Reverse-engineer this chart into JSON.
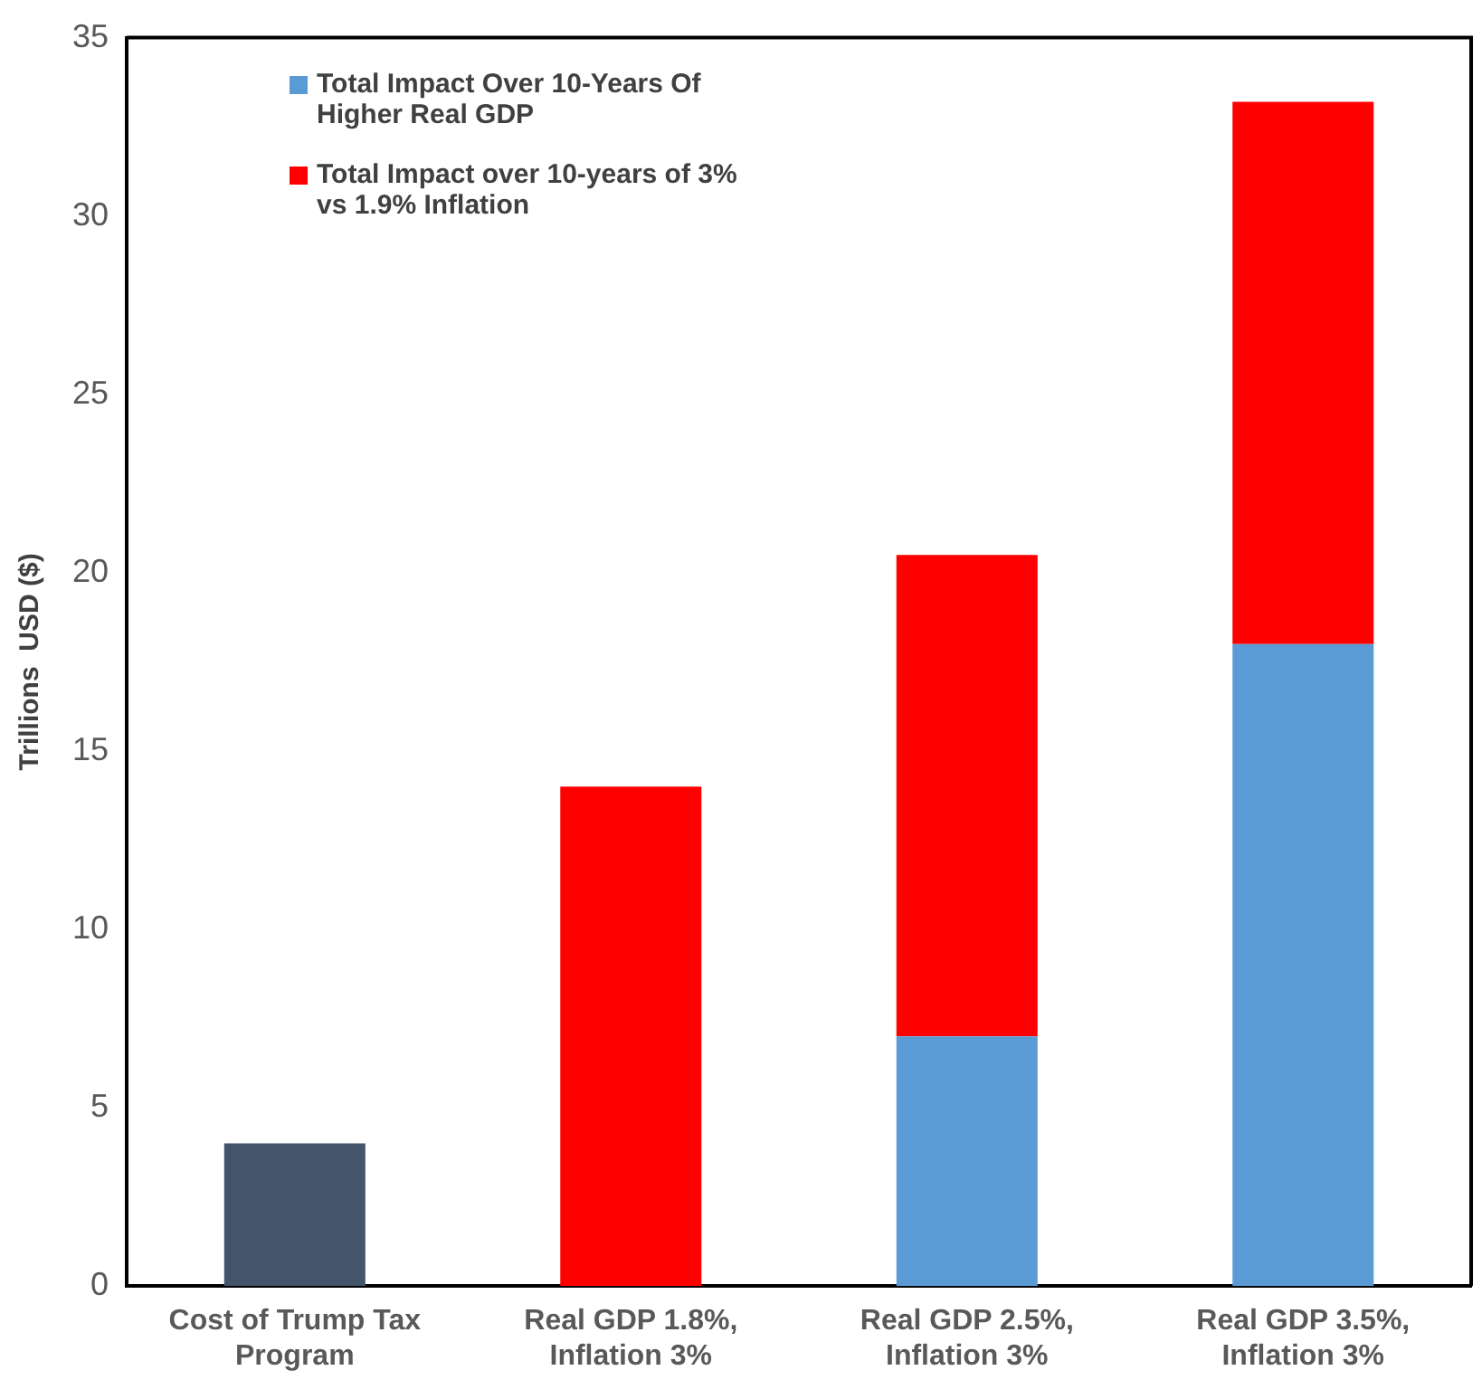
{
  "chart_data": {
    "type": "bar",
    "stacked": true,
    "ylabel": "Trillions  USD ($)",
    "categories": [
      "Cost of Trump Tax Program",
      "Real GDP 1.8%, Inflation 3%",
      "Real GDP 2.5%, Inflation 3%",
      "Real GDP 3.5%, Inflation 3%"
    ],
    "series": [
      {
        "color": "#44546a",
        "values": [
          4,
          null,
          null,
          null
        ]
      },
      {
        "name": "Total Impact Over 10-Years Of Higher Real GDP",
        "color": "#5b9bd5",
        "values": [
          null,
          null,
          7,
          18
        ]
      },
      {
        "name": "Total Impact over 10-years of 3% vs 1.9% Inflation",
        "color": "#ff0000",
        "values": [
          null,
          14,
          13.5,
          15.2
        ]
      }
    ],
    "ylim": [
      0,
      35
    ],
    "yticks": [
      0,
      5,
      10,
      15,
      20,
      25,
      30,
      35
    ],
    "grid": false,
    "legend": "top left"
  }
}
